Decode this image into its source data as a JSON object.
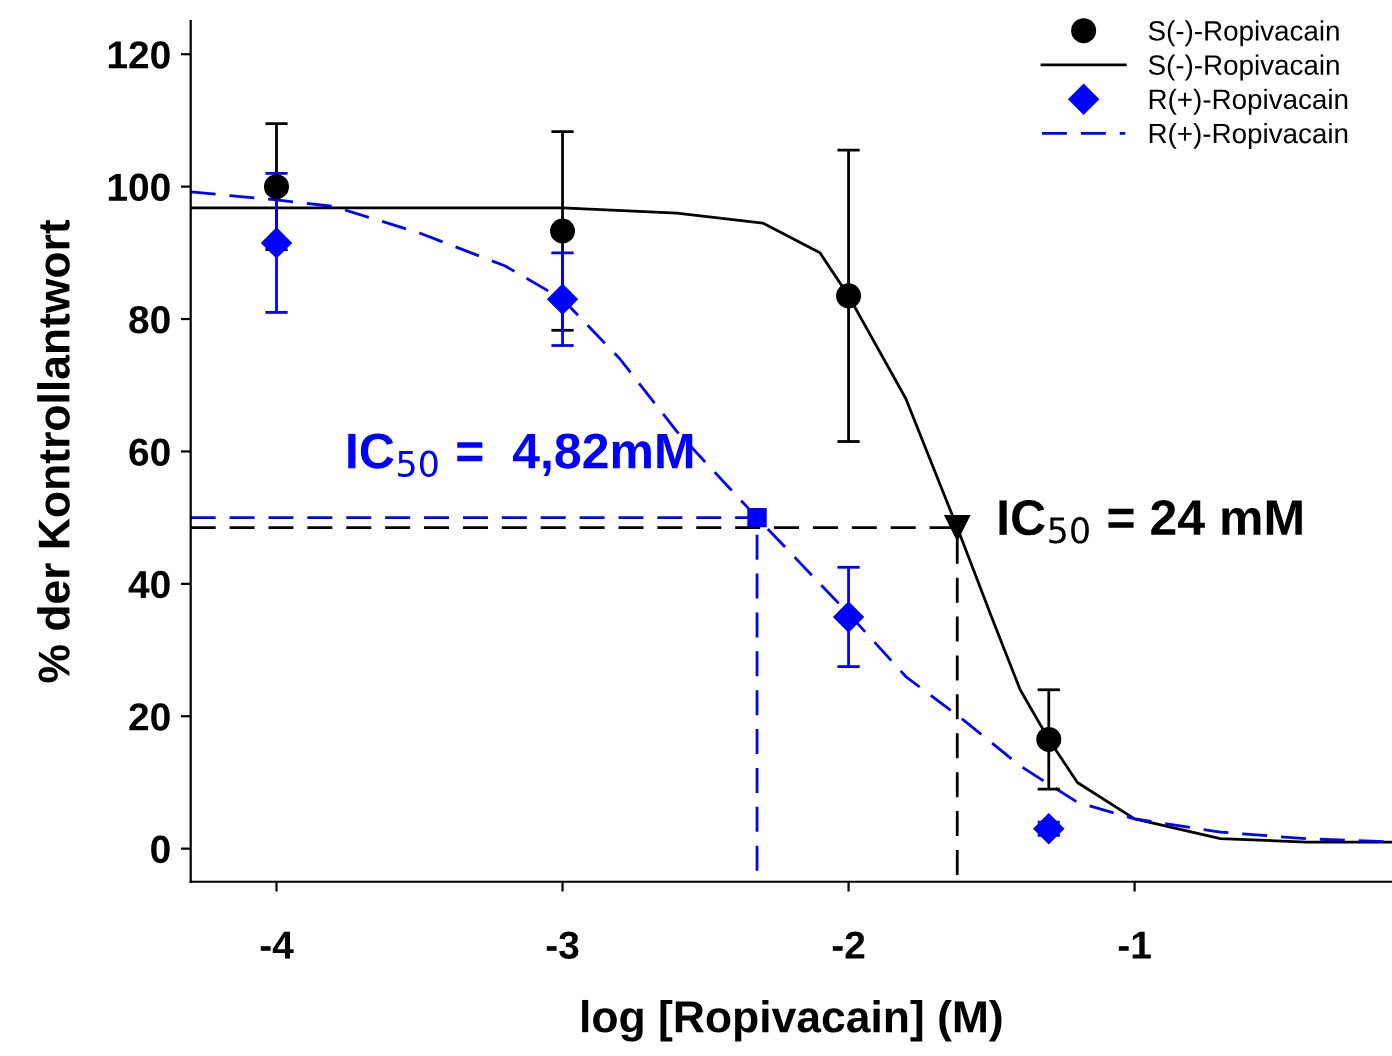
{
  "chart_data": {
    "type": "scatter",
    "xlabel": "log [Ropivacain] (M)",
    "ylabel": "% der Kontrollantwort",
    "xlim": [
      -4.3,
      -0.1
    ],
    "ylim": [
      -5,
      125
    ],
    "xticks": [
      -4,
      -3,
      -2,
      -1
    ],
    "yticks": [
      0,
      20,
      40,
      60,
      80,
      100,
      120
    ],
    "grid": false,
    "legend": "top right",
    "series": [
      {
        "name": "S(-)-Ropivacain",
        "marker": "circle",
        "color": "#000000",
        "x": [
          -4,
          -3,
          -2,
          -1.3
        ],
        "values": [
          100,
          93.3,
          83.5,
          16.5
        ],
        "errors": [
          9.5,
          15,
          22,
          7.5
        ]
      },
      {
        "name": "S(-)-Ropivacain",
        "type": "line",
        "line_style": "solid",
        "marker": "none",
        "color": "#000000",
        "x": [
          -4.3,
          -3,
          -2.6,
          -2.3,
          -2.1,
          -2.0,
          -1.8,
          -1.62,
          -1.5,
          -1.4,
          -1.3,
          -1.2,
          -1,
          -0.7,
          -0.4,
          -0.1
        ],
        "values": [
          96.8,
          96.8,
          96,
          94.5,
          90,
          83.5,
          68,
          48.5,
          35,
          24,
          16.5,
          10,
          4.5,
          1.5,
          1,
          1
        ]
      },
      {
        "name": "R(+)-Ropivacain",
        "marker": "diamond",
        "color": "#0000ff",
        "x": [
          -4,
          -3,
          -2,
          -1.3
        ],
        "values": [
          91.5,
          83,
          35,
          3
        ],
        "errors": [
          10.5,
          7,
          7.5,
          1
        ]
      },
      {
        "name": "R(+)-Ropivacain",
        "type": "line",
        "line_style": "dashed",
        "marker": "none",
        "color": "#0000ff",
        "x": [
          -4.3,
          -4,
          -3.8,
          -3.5,
          -3.2,
          -3,
          -2.8,
          -2.6,
          -2.32,
          -2.1,
          -2,
          -1.8,
          -1.6,
          -1.4,
          -1.2,
          -1,
          -0.7,
          -0.4,
          -0.1
        ],
        "values": [
          99.2,
          98,
          97,
          93,
          88,
          83,
          74,
          63,
          50,
          40,
          35.5,
          26,
          19.5,
          12.5,
          7,
          4.5,
          2.5,
          1.5,
          1
        ]
      },
      {
        "type": "line",
        "line_style": "dashed",
        "marker": "none",
        "color": "#0000ff",
        "x": [
          -4.3,
          -2.32,
          -2.32
        ],
        "values": [
          50,
          50,
          -5
        ]
      },
      {
        "type": "line",
        "line_style": "dashed",
        "marker": "none",
        "color": "#000000",
        "x": [
          -4.3,
          -1.62,
          -1.62
        ],
        "values": [
          48.5,
          48.5,
          -5
        ]
      },
      {
        "marker": "square",
        "color": "#0000ff",
        "x": [
          -2.32
        ],
        "values": [
          50
        ]
      },
      {
        "marker": "triangle",
        "color": "#000000",
        "x": [
          -1.62
        ],
        "values": [
          48.5
        ]
      }
    ],
    "annotations": [
      {
        "text": "IC$_{50}$ =  4,82mM",
        "x": -2.32,
        "y": 50
      },
      {
        "text": "IC$_{50}$ = 24 mM",
        "x": -1.62,
        "y": 48.5
      }
    ]
  }
}
